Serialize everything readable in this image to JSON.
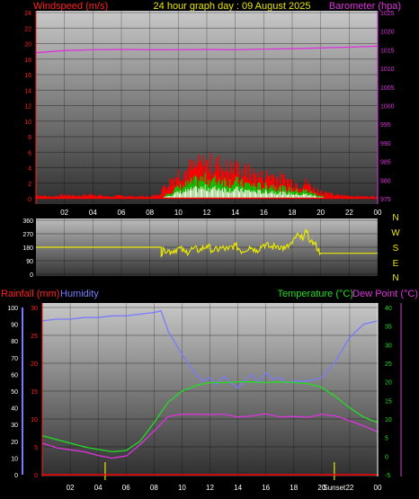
{
  "header": {
    "left_label": "Windspeed (m/s)",
    "title": "24 hour graph day : 09 August 2025",
    "right_label": "Barometer (hpa)"
  },
  "colors": {
    "wind": "#ff0000",
    "gust": "#00cc00",
    "wind_fill": "#ffffff",
    "baro": "#dd33dd",
    "dir": "#e8e800",
    "temp": "#22dd22",
    "dew": "#dd33dd",
    "hum": "#7a7aff",
    "rain": "#ff0000",
    "axis_red": "#ff2020",
    "axis_white": "#ffffff",
    "axis_green": "#22dd22",
    "event": "#e8e800"
  },
  "x_axis": {
    "ticks": [
      "02",
      "04",
      "06",
      "08",
      "10",
      "12",
      "14",
      "16",
      "18",
      "20",
      "22",
      "00"
    ]
  },
  "panel_bottom": {
    "rain_label": "Rainfall (mm)",
    "hum_label": "Humidity",
    "temp_label": "Temperature (°C)",
    "dew_label": "Dew Point (°C)",
    "sunset_label": "Sunset"
  },
  "chart_data": [
    {
      "type": "line",
      "name": "wind-barometer",
      "ylabel": "Windspeed (m/s)",
      "y2label": "Barometer (hpa)",
      "ylim": [
        0,
        24
      ],
      "y2lim": [
        975,
        1025
      ],
      "yticks": [
        0,
        2,
        4,
        6,
        8,
        10,
        12,
        14,
        16,
        18,
        20,
        22,
        24
      ],
      "y2ticks": [
        975,
        980,
        985,
        990,
        995,
        1000,
        1005,
        1010,
        1015,
        1020,
        1025
      ],
      "series": [
        {
          "name": "Windspeed (m/s)",
          "hours": [
            0,
            1,
            2,
            3,
            4,
            5,
            6,
            7,
            8,
            8.5,
            9,
            9.5,
            10,
            10.5,
            11,
            11.5,
            12,
            12.5,
            13,
            13.5,
            14,
            14.5,
            15,
            15.5,
            16,
            16.5,
            17,
            17.5,
            18,
            18.5,
            19,
            19.5,
            20,
            21,
            22,
            23,
            24
          ],
          "values": [
            0.5,
            0.3,
            0.5,
            0.4,
            0.6,
            0.3,
            0.4,
            0.3,
            0.3,
            0.5,
            1.5,
            2.5,
            3.5,
            3.8,
            4.2,
            4.5,
            4.8,
            4.5,
            4.6,
            4.0,
            4.2,
            3.8,
            3.5,
            3.2,
            3.0,
            3.3,
            2.8,
            2.6,
            2.4,
            2.0,
            2.2,
            1.4,
            1.0,
            0.5,
            0.4,
            0.3,
            0.3
          ]
        },
        {
          "name": "Gust (m/s)",
          "hours": [
            9,
            9.5,
            10,
            10.5,
            11,
            11.5,
            12,
            12.5,
            13,
            13.5,
            14,
            14.5,
            15,
            15.5,
            16,
            16.5,
            17,
            17.5,
            18,
            18.5,
            19,
            19.5,
            20
          ],
          "values": [
            0.5,
            1.0,
            1.5,
            1.8,
            2.2,
            2.5,
            2.6,
            2.4,
            2.6,
            2.2,
            2.3,
            2.0,
            1.9,
            1.7,
            1.6,
            1.8,
            1.5,
            1.3,
            1.2,
            1.0,
            1.1,
            0.7,
            0.4
          ]
        },
        {
          "name": "Barometer (hpa)",
          "hours": [
            0,
            2,
            4,
            6,
            8,
            10,
            12,
            14,
            16,
            18,
            20,
            22,
            24
          ],
          "values": [
            1014.2,
            1014.8,
            1015.0,
            1015.1,
            1015.0,
            1015.0,
            1015.1,
            1015.0,
            1015.2,
            1015.3,
            1015.5,
            1015.7,
            1016.0
          ]
        }
      ]
    },
    {
      "type": "line",
      "name": "wind-direction",
      "ylim": [
        0,
        360
      ],
      "yticks": [
        0,
        90,
        180,
        270,
        360
      ],
      "right_labels": [
        "N",
        "W",
        "S",
        "E",
        "N"
      ],
      "series": [
        {
          "name": "Wind direction",
          "hours": [
            0,
            8.8,
            8.8,
            9.0,
            9.5,
            10,
            10.5,
            11,
            11.5,
            12,
            12.5,
            13,
            13.5,
            14,
            14.5,
            15,
            15.5,
            16,
            16.5,
            17,
            17.5,
            18,
            18.3,
            18.6,
            19,
            19.3,
            19.6,
            20,
            24
          ],
          "values": [
            180,
            180,
            120,
            170,
            150,
            175,
            145,
            170,
            160,
            190,
            155,
            175,
            165,
            195,
            150,
            185,
            160,
            200,
            180,
            190,
            170,
            205,
            260,
            240,
            280,
            220,
            200,
            140,
            140
          ]
        }
      ]
    },
    {
      "type": "line",
      "name": "temperature-humidity-rain",
      "ylabel": "Rainfall (mm)",
      "y2label": "Temperature (°C)",
      "ylim_humidity": [
        0,
        100
      ],
      "ylim_rain": [
        0,
        30
      ],
      "ylim_temp": [
        -5,
        40
      ],
      "yticks_humidity": [
        0,
        10,
        20,
        30,
        40,
        50,
        60,
        70,
        80,
        90,
        100
      ],
      "yticks_rain": [
        0,
        5,
        10,
        15,
        20,
        25,
        30
      ],
      "yticks_temp": [
        -5,
        0,
        5,
        10,
        15,
        20,
        25,
        30,
        35,
        40
      ],
      "series": [
        {
          "name": "Humidity",
          "hours": [
            0,
            1,
            2,
            3,
            4,
            5,
            6,
            7,
            8,
            8.5,
            9,
            10,
            11,
            11.5,
            12,
            12.5,
            13,
            13.5,
            14,
            14.5,
            15,
            15.5,
            16,
            16.5,
            17,
            17.5,
            18,
            19,
            20,
            21,
            22,
            23,
            24
          ],
          "values": [
            92,
            93,
            93,
            94,
            94,
            95,
            95,
            96,
            97,
            98,
            86,
            72,
            60,
            56,
            58,
            54,
            59,
            55,
            52,
            56,
            60,
            55,
            61,
            57,
            58,
            55,
            56,
            56,
            58,
            68,
            82,
            90,
            92
          ]
        },
        {
          "name": "Temperature (°C)",
          "hours": [
            0,
            1,
            2,
            3,
            4,
            5,
            6,
            7,
            8,
            9,
            10,
            11,
            12,
            13,
            14,
            15,
            16,
            17,
            18,
            19,
            20,
            21,
            22,
            23,
            24
          ],
          "values": [
            5.5,
            4.5,
            3.5,
            2.5,
            1.8,
            1.2,
            1.5,
            4,
            9,
            14.5,
            17.5,
            19,
            19.8,
            19.8,
            20,
            20,
            19.8,
            20,
            19.8,
            19.5,
            18.5,
            16,
            13,
            10.5,
            9
          ]
        },
        {
          "name": "Dew Point (°C)",
          "hours": [
            0,
            1,
            2,
            3,
            4,
            5,
            6,
            7,
            8,
            9,
            10,
            11,
            12,
            13,
            14,
            15,
            16,
            17,
            18,
            19,
            20,
            21,
            22,
            23,
            24
          ],
          "values": [
            3.5,
            2.5,
            1.5,
            1,
            0,
            -0.5,
            0,
            3,
            7,
            10.5,
            11.5,
            11.5,
            11,
            11.2,
            10.8,
            11,
            11.3,
            10.8,
            10.8,
            10.5,
            11,
            10.8,
            9.5,
            8,
            6.5
          ]
        },
        {
          "name": "Rainfall (mm)",
          "hours": [
            0,
            24
          ],
          "values": [
            0,
            0
          ]
        }
      ],
      "events": [
        {
          "hour": 4.5
        },
        {
          "hour": 20.9,
          "label": "Sunset"
        }
      ]
    }
  ]
}
